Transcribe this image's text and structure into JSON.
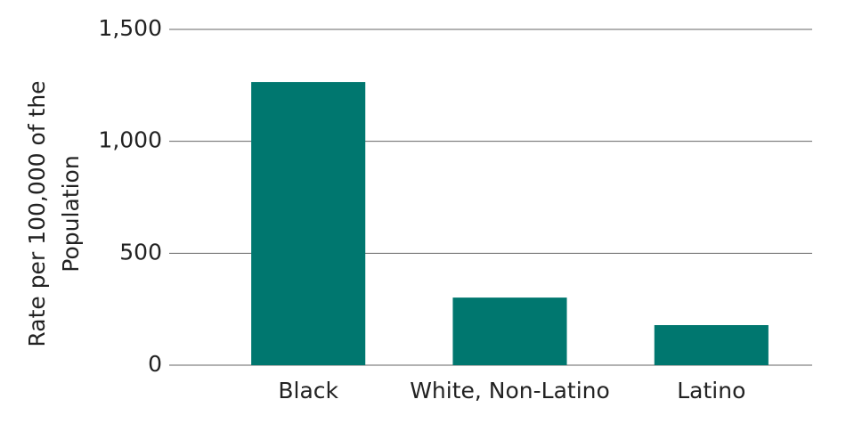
{
  "chart_data": {
    "type": "bar",
    "ylabel": "Rate per 100,000 of the Population",
    "categories": [
      "Black",
      "White, Non-Latino",
      "Latino"
    ],
    "values": [
      1265,
      302,
      179
    ],
    "color": "#00776f",
    "ylim": [
      0,
      1500
    ],
    "yticks": [
      0,
      500,
      {
        "value": 1000,
        "label": "1,000"
      },
      {
        "value": 1500,
        "label": "1,500"
      }
    ],
    "grid": true
  }
}
